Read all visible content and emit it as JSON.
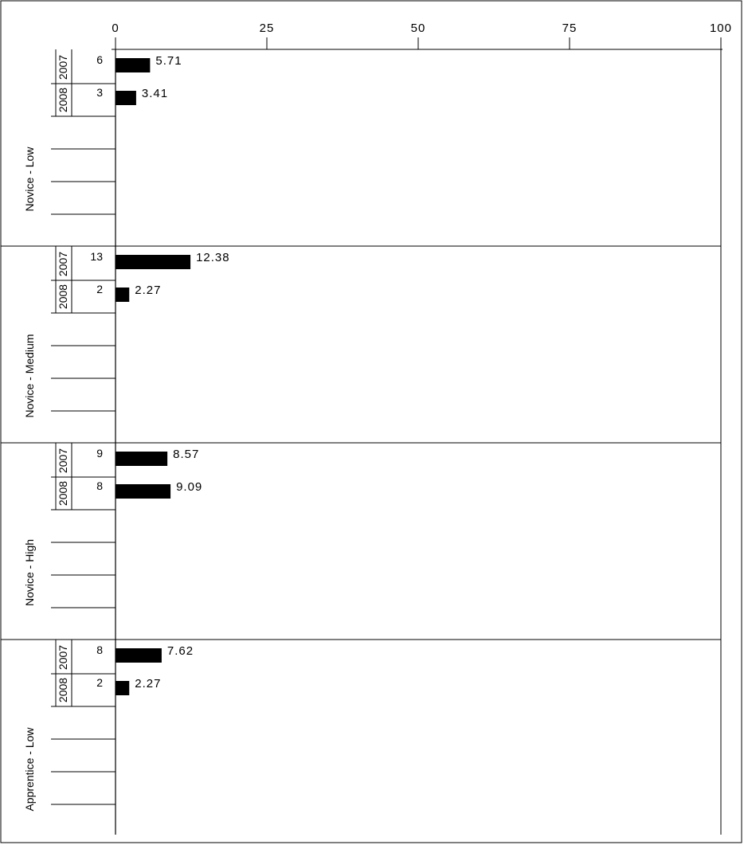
{
  "chart_data": {
    "type": "bar",
    "orientation": "horizontal",
    "xlim": [
      0,
      100
    ],
    "xticks": [
      0,
      25,
      50,
      75,
      100
    ],
    "grid": false,
    "groups": [
      {
        "label": "Novice - Low",
        "rows": [
          {
            "year": "2007",
            "count": "6",
            "value": 5.71,
            "value_label": "5.71"
          },
          {
            "year": "2008",
            "count": "3",
            "value": 3.41,
            "value_label": "3.41"
          }
        ]
      },
      {
        "label": "Novice - Medium",
        "rows": [
          {
            "year": "2007",
            "count": "13",
            "value": 12.38,
            "value_label": "12.38"
          },
          {
            "year": "2008",
            "count": "2",
            "value": 2.27,
            "value_label": "2.27"
          }
        ]
      },
      {
        "label": "Novice - High",
        "rows": [
          {
            "year": "2007",
            "count": "9",
            "value": 8.57,
            "value_label": "8.57"
          },
          {
            "year": "2008",
            "count": "8",
            "value": 9.09,
            "value_label": "9.09"
          }
        ]
      },
      {
        "label": "Apprentice - Low",
        "rows": [
          {
            "year": "2007",
            "count": "8",
            "value": 7.62,
            "value_label": "7.62"
          },
          {
            "year": "2008",
            "count": "2",
            "value": 2.27,
            "value_label": "2.27"
          }
        ]
      }
    ],
    "bar_color": "#000000"
  }
}
